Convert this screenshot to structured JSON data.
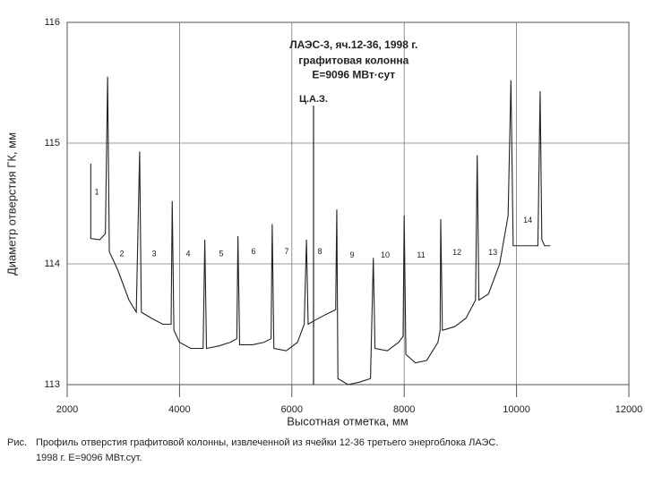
{
  "chart_data": {
    "type": "line",
    "title_lines": [
      "ЛАЭС-3, яч.12-36, 1998 г.",
      "графитовая колонна",
      "E=9096 МВт·сут"
    ],
    "title_x": 7100,
    "title_y": [
      115.81,
      115.68,
      115.56
    ],
    "x_label": "Высотная отметка, мм",
    "y_label": "Диаметр отверстия ГК, мм",
    "xlim": [
      2000,
      12000
    ],
    "xticks": [
      2000,
      4000,
      6000,
      8000,
      10000,
      12000
    ],
    "ylim": [
      113,
      116
    ],
    "yticks": [
      113,
      114,
      115,
      116
    ],
    "grid": true,
    "x": [
      2420,
      2420,
      2580,
      2680,
      2720,
      2750,
      2900,
      3100,
      3230,
      3290,
      3320,
      3500,
      3700,
      3850,
      3870,
      3900,
      4000,
      4200,
      4420,
      4450,
      4480,
      4700,
      4900,
      5020,
      5040,
      5070,
      5300,
      5500,
      5630,
      5650,
      5680,
      5900,
      6100,
      6220,
      6260,
      6290,
      6400,
      6600,
      6780,
      6800,
      6820,
      7000,
      7200,
      7400,
      7450,
      7480,
      7700,
      7900,
      7980,
      8000,
      8030,
      8200,
      8400,
      8600,
      8640,
      8650,
      8680,
      8900,
      9100,
      9270,
      9300,
      9330,
      9500,
      9700,
      9850,
      9900,
      9940,
      10380,
      10420,
      10450,
      10500,
      10600
    ],
    "series": [
      {
        "color": "#222222",
        "values": [
          114.83,
          114.21,
          114.2,
          114.25,
          115.55,
          114.1,
          113.95,
          113.7,
          113.6,
          114.93,
          113.6,
          113.55,
          113.5,
          113.5,
          114.52,
          113.45,
          113.35,
          113.3,
          113.3,
          114.2,
          113.3,
          113.32,
          113.35,
          113.38,
          114.23,
          113.33,
          113.33,
          113.35,
          113.38,
          114.33,
          113.3,
          113.28,
          113.35,
          113.5,
          114.2,
          113.5,
          113.53,
          113.58,
          113.62,
          114.45,
          113.05,
          113.0,
          113.02,
          113.05,
          114.05,
          113.3,
          113.28,
          113.35,
          113.4,
          114.4,
          113.25,
          113.18,
          113.2,
          113.35,
          113.45,
          114.37,
          113.45,
          113.48,
          113.55,
          113.7,
          114.9,
          113.7,
          113.75,
          114.0,
          114.4,
          115.52,
          114.15,
          114.15,
          115.43,
          114.2,
          114.15,
          114.15
        ]
      }
    ],
    "marker_line": {
      "label": "Ц.А.З.",
      "x": 6386,
      "top": 115.31
    },
    "annotations": [
      {
        "text": "1",
        "x": 2526,
        "y": 114.59
      },
      {
        "text": "2",
        "x": 2973,
        "y": 114.08
      },
      {
        "text": "3",
        "x": 3547,
        "y": 114.08
      },
      {
        "text": "4",
        "x": 4153,
        "y": 114.08
      },
      {
        "text": "5",
        "x": 4743,
        "y": 114.08
      },
      {
        "text": "6",
        "x": 5317,
        "y": 114.1
      },
      {
        "text": "7",
        "x": 5907,
        "y": 114.1
      },
      {
        "text": "8",
        "x": 6498,
        "y": 114.1
      },
      {
        "text": "9",
        "x": 7072,
        "y": 114.07
      },
      {
        "text": "10",
        "x": 7663,
        "y": 114.07
      },
      {
        "text": "11",
        "x": 8301,
        "y": 114.07
      },
      {
        "text": "12",
        "x": 8939,
        "y": 114.09
      },
      {
        "text": "13",
        "x": 9577,
        "y": 114.09
      },
      {
        "text": "14",
        "x": 10199,
        "y": 114.36
      }
    ]
  },
  "caption": {
    "prefix": "Рис.",
    "line1": "Профиль отверстия графитовой колонны, извлеченной из ячейки 12-36 третьего энергоблока ЛАЭС.",
    "line2": "1998 г. E=9096 МВт.сут."
  }
}
